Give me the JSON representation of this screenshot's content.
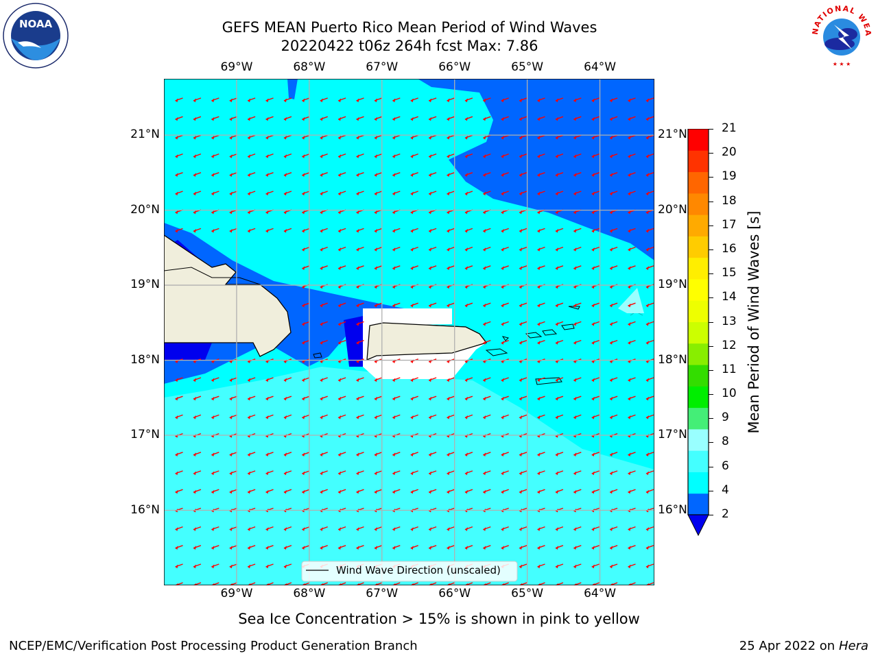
{
  "header": {
    "title_line1": "GEFS MEAN Puerto Rico Mean Period of Wind Waves",
    "title_line2": "20220422 t06z 264h fcst   Max: 7.86"
  },
  "logos": {
    "left": {
      "text": "NOAA",
      "icon": "noaa-logo-icon"
    },
    "right": {
      "text": "NATIONAL WEATHER SERVICE",
      "icon": "nws-logo-icon"
    }
  },
  "map": {
    "lon_labels": [
      "69°W",
      "68°W",
      "67°W",
      "66°W",
      "65°W",
      "64°W"
    ],
    "lat_labels": [
      "21°N",
      "20°N",
      "19°N",
      "18°N",
      "17°N",
      "16°N"
    ],
    "lon_values": [
      -69,
      -68,
      -67,
      -66,
      -65,
      -64
    ],
    "lat_values": [
      21,
      20,
      19,
      18,
      17,
      16
    ],
    "lon_range": [
      -70,
      -63.25
    ],
    "lat_range": [
      15.0,
      21.75
    ],
    "grid": true,
    "legend": {
      "label": "Wind Wave Direction (unscaled)",
      "placement": "bottom-center"
    },
    "arrow_color": "#ff0000"
  },
  "colorbar": {
    "label": "Mean Period of Wind Waves [s]",
    "ticks": [
      "21",
      "20",
      "19",
      "18",
      "17",
      "16",
      "15",
      "14",
      "13",
      "12",
      "11",
      "10",
      "9",
      "8",
      "6",
      "4",
      "2"
    ],
    "colors": [
      "#0000ee",
      "#0066ff",
      "#00ffff",
      "#44ffff",
      "#99ffff",
      "#44ee77",
      "#00ee00",
      "#33dd00",
      "#88ee00",
      "#ccff00",
      "#eeff00",
      "#ffff00",
      "#ffee00",
      "#ffcc00",
      "#ffaa00",
      "#ff8800",
      "#ff6600",
      "#ff3300",
      "#ff0000"
    ]
  },
  "caption": "Sea Ice Concentration > 15% is shown in pink to yellow",
  "footer": {
    "left": "NCEP/EMC/Verification Post Processing Product Generation Branch",
    "date": "25 Apr 2022 on",
    "host": "Hera"
  }
}
